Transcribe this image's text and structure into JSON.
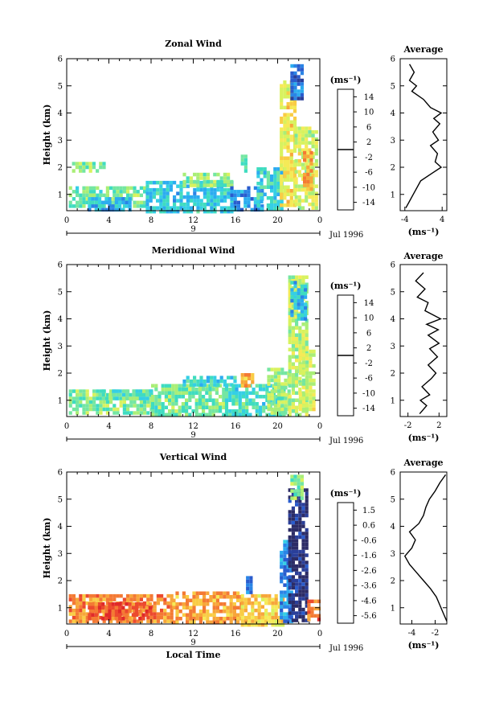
{
  "xaxis": {
    "ticks": [
      "0",
      "4",
      "8",
      "12",
      "16",
      "20",
      "0"
    ],
    "day_label": "9",
    "date_label": "Jul 1996",
    "label": "Local Time"
  },
  "ylabel": "Height (km)",
  "colorbar_unit": "(ms⁻¹)",
  "avg_unit": "(ms⁻¹)",
  "avg_title": "Average",
  "chart_data": [
    {
      "type": "heatmap",
      "title": "Zonal Wind",
      "xlabel": "",
      "ylabel": "Height (km)",
      "x_range_hours": [
        0,
        24
      ],
      "y_range_km": [
        0.4,
        6
      ],
      "y_ticks": [
        "1",
        "2",
        "3",
        "4",
        "5",
        "6"
      ],
      "colorbar": {
        "ticks": [
          "14",
          "10",
          "6",
          "2",
          "-2",
          "-6",
          "-10",
          "-14"
        ],
        "range": [
          -16,
          16
        ],
        "zero_line": true
      },
      "regions": [
        {
          "x0": 0.2,
          "x1": 7.5,
          "y0": 0.5,
          "y1": 1.3,
          "value": -1
        },
        {
          "x0": 0.5,
          "x1": 3.5,
          "y0": 1.8,
          "y1": 2.2,
          "value": 0
        },
        {
          "x0": 2.0,
          "x1": 6.0,
          "y0": 0.4,
          "y1": 0.9,
          "value": -6
        },
        {
          "x0": 7.5,
          "x1": 15.5,
          "y0": 0.4,
          "y1": 1.5,
          "value": -5
        },
        {
          "x0": 11.0,
          "x1": 15.5,
          "y0": 1.3,
          "y1": 1.8,
          "value": 0
        },
        {
          "x0": 15.5,
          "x1": 18.5,
          "y0": 0.4,
          "y1": 1.3,
          "value": -8
        },
        {
          "x0": 16.5,
          "x1": 17.0,
          "y0": 1.8,
          "y1": 2.6,
          "value": -3
        },
        {
          "x0": 18.0,
          "x1": 20.5,
          "y0": 0.4,
          "y1": 2.0,
          "value": -4
        },
        {
          "x0": 20.2,
          "x1": 21.6,
          "y0": 0.6,
          "y1": 5.2,
          "value": 5
        },
        {
          "x0": 21.6,
          "x1": 23.6,
          "y0": 0.5,
          "y1": 3.5,
          "value": 3
        },
        {
          "x0": 21.2,
          "x1": 22.4,
          "y0": 4.6,
          "y1": 5.8,
          "value": -10
        },
        {
          "x0": 22.4,
          "x1": 23.2,
          "y0": 1.2,
          "y1": 2.6,
          "value": 9
        }
      ],
      "average_profile": {
        "x_ticks": [
          "-4",
          "4"
        ],
        "x_range": [
          -5,
          5
        ],
        "y_ticks": [
          "1",
          "2",
          "3",
          "4",
          "5",
          "6"
        ],
        "height_km": [
          0.5,
          1.0,
          1.5,
          1.8,
          2.0,
          2.2,
          2.5,
          2.8,
          3.0,
          3.3,
          3.6,
          3.8,
          4.0,
          4.2,
          4.5,
          4.8,
          5.0,
          5.2,
          5.5,
          5.8
        ],
        "value": [
          -3.8,
          -2.2,
          -0.6,
          2.0,
          3.8,
          2.5,
          3.0,
          1.5,
          3.2,
          2.0,
          3.5,
          2.2,
          3.8,
          1.5,
          0.0,
          -2.5,
          -1.5,
          -3.0,
          -2.0,
          -3.0
        ]
      }
    },
    {
      "type": "heatmap",
      "title": "Meridional Wind",
      "xlabel": "",
      "ylabel": "Height (km)",
      "x_range_hours": [
        0,
        24
      ],
      "y_range_km": [
        0.4,
        6
      ],
      "y_ticks": [
        "1",
        "2",
        "3",
        "4",
        "5",
        "6"
      ],
      "colorbar": {
        "ticks": [
          "14",
          "10",
          "6",
          "2",
          "-2",
          "-6",
          "-10",
          "-14"
        ],
        "range": [
          -16,
          16
        ],
        "zero_line": true
      },
      "regions": [
        {
          "x0": 0.2,
          "x1": 8.0,
          "y0": 0.5,
          "y1": 1.4,
          "value": 0
        },
        {
          "x0": 3.0,
          "x1": 8.0,
          "y0": 1.0,
          "y1": 1.4,
          "value": -2
        },
        {
          "x0": 8.0,
          "x1": 15.0,
          "y0": 0.4,
          "y1": 1.6,
          "value": -1
        },
        {
          "x0": 11.0,
          "x1": 16.0,
          "y0": 1.5,
          "y1": 1.9,
          "value": -4
        },
        {
          "x0": 15.0,
          "x1": 20.5,
          "y0": 0.4,
          "y1": 1.6,
          "value": -3
        },
        {
          "x0": 16.5,
          "x1": 17.5,
          "y0": 1.5,
          "y1": 2.0,
          "value": 8
        },
        {
          "x0": 19.0,
          "x1": 21.0,
          "y0": 0.5,
          "y1": 2.2,
          "value": 1
        },
        {
          "x0": 21.0,
          "x1": 22.8,
          "y0": 0.5,
          "y1": 5.6,
          "value": 2
        },
        {
          "x0": 21.2,
          "x1": 22.6,
          "y0": 4.0,
          "y1": 5.4,
          "value": -6
        },
        {
          "x0": 22.0,
          "x1": 23.5,
          "y0": 0.6,
          "y1": 3.0,
          "value": 3
        }
      ],
      "average_profile": {
        "x_ticks": [
          "-2",
          "2"
        ],
        "x_range": [
          -3,
          3
        ],
        "y_ticks": [
          "1",
          "2",
          "3",
          "4",
          "5",
          "6"
        ],
        "height_km": [
          0.5,
          0.8,
          1.0,
          1.2,
          1.5,
          1.8,
          2.0,
          2.3,
          2.6,
          2.9,
          3.1,
          3.4,
          3.6,
          3.8,
          4.0,
          4.3,
          4.6,
          4.8,
          5.1,
          5.4,
          5.7
        ],
        "value": [
          -0.5,
          0.4,
          -0.4,
          0.8,
          -0.2,
          1.0,
          1.6,
          0.6,
          1.8,
          0.8,
          2.0,
          0.6,
          1.9,
          0.4,
          2.2,
          0.2,
          0.6,
          -0.8,
          0.2,
          -1.0,
          0.0
        ]
      }
    },
    {
      "type": "heatmap",
      "title": "Vertical Wind",
      "xlabel": "Local Time",
      "ylabel": "Height (km)",
      "x_range_hours": [
        0,
        24
      ],
      "y_range_km": [
        0.4,
        6
      ],
      "y_ticks": [
        "1",
        "2",
        "3",
        "4",
        "5",
        "6"
      ],
      "colorbar": {
        "ticks": [
          "1.5",
          "0.6",
          "-0.6",
          "-1.6",
          "-2.6",
          "-3.6",
          "-4.6",
          "-5.6"
        ],
        "range": [
          -6.0,
          2.0
        ],
        "zero_line": false
      },
      "regions": [
        {
          "x0": 0.2,
          "x1": 10.0,
          "y0": 0.5,
          "y1": 1.5,
          "value": 0.5
        },
        {
          "x0": 2.0,
          "x1": 8.0,
          "y0": 0.6,
          "y1": 1.2,
          "value": 1.0
        },
        {
          "x0": 10.0,
          "x1": 16.5,
          "y0": 0.4,
          "y1": 1.6,
          "value": 0.2
        },
        {
          "x0": 16.5,
          "x1": 20.5,
          "y0": 0.4,
          "y1": 1.5,
          "value": -0.4
        },
        {
          "x0": 17.0,
          "x1": 17.4,
          "y0": 1.5,
          "y1": 2.3,
          "value": -4.5
        },
        {
          "x0": 20.2,
          "x1": 21.2,
          "y0": 0.5,
          "y1": 3.5,
          "value": -4.0
        },
        {
          "x0": 21.0,
          "x1": 22.8,
          "y0": 0.5,
          "y1": 5.4,
          "value": -5.6
        },
        {
          "x0": 21.2,
          "x1": 22.3,
          "y0": 5.0,
          "y1": 5.9,
          "value": -2.0
        },
        {
          "x0": 22.8,
          "x1": 23.9,
          "y0": 0.5,
          "y1": 1.3,
          "value": 0.8
        }
      ],
      "average_profile": {
        "x_ticks": [
          "-4",
          "-2"
        ],
        "x_range": [
          -5,
          -1
        ],
        "y_ticks": [
          "1",
          "2",
          "3",
          "4",
          "5",
          "6"
        ],
        "height_km": [
          0.5,
          0.8,
          1.1,
          1.4,
          1.7,
          2.0,
          2.3,
          2.6,
          2.9,
          3.2,
          3.5,
          3.8,
          4.1,
          4.4,
          4.7,
          5.0,
          5.3,
          5.6,
          5.9
        ],
        "value": [
          -1.0,
          -1.3,
          -1.6,
          -1.9,
          -2.4,
          -3.0,
          -3.6,
          -4.2,
          -4.6,
          -4.0,
          -3.7,
          -4.2,
          -3.4,
          -3.0,
          -2.8,
          -2.5,
          -2.0,
          -1.6,
          -1.1
        ]
      }
    }
  ]
}
